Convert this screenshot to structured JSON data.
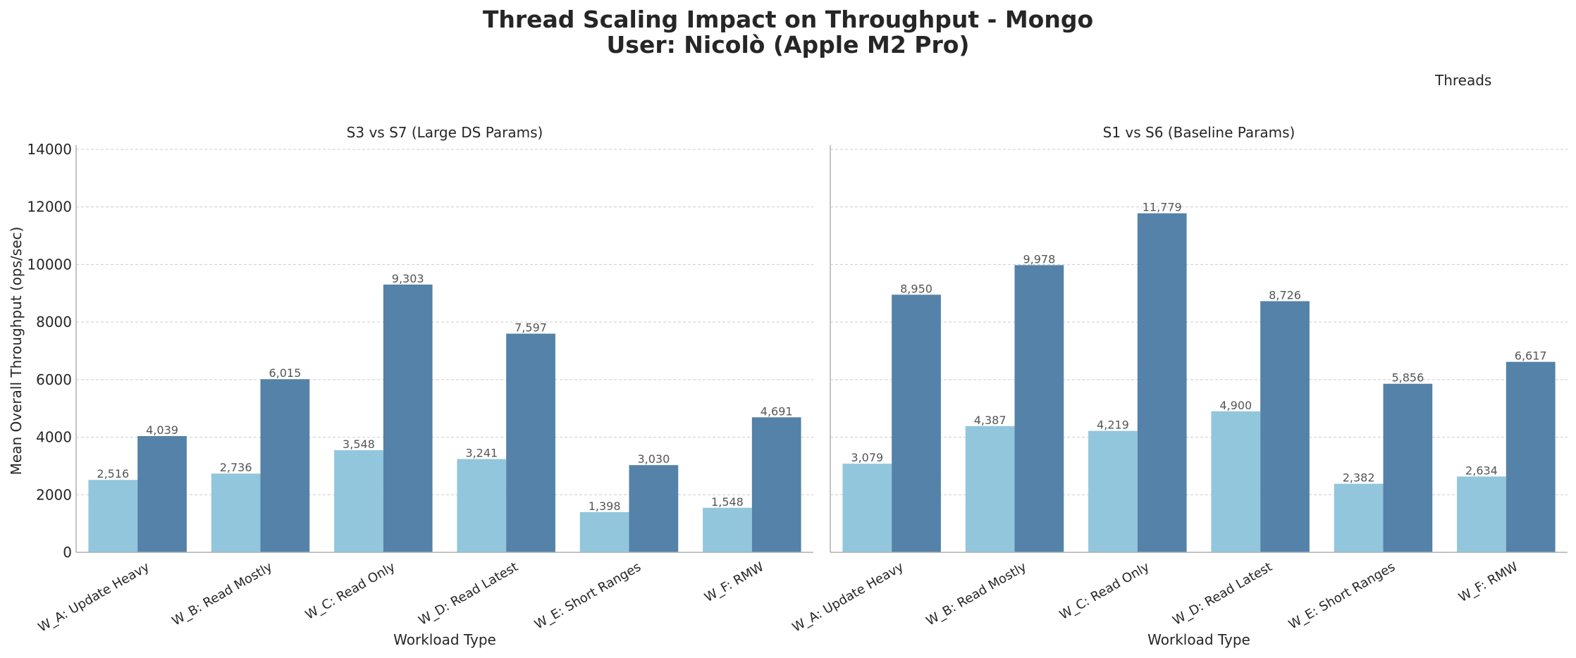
{
  "title_line1": "Thread Scaling Impact on Throughput - Mongo",
  "title_line2": "User: Nicolò (Apple M2 Pro)",
  "legend_title": "Threads",
  "colors": {
    "low_threads": "#92c6dd",
    "high_threads": "#5482a8",
    "grid": "#cccccc",
    "axis": "#b0b0b0"
  },
  "chart_data": [
    {
      "type": "bar",
      "subtitle": "S3 vs S7 (Large DS Params)",
      "xlabel": "Workload Type",
      "ylabel": "Mean Overall Throughput (ops/sec)",
      "ylim": [
        0,
        14000
      ],
      "yticks": [
        0,
        2000,
        4000,
        6000,
        8000,
        10000,
        12000,
        14000
      ],
      "grid": true,
      "categories": [
        "W_A: Update Heavy",
        "W_B: Read Mostly",
        "W_C: Read Only",
        "W_D: Read Latest",
        "W_E: Short Ranges",
        "W_F: RMW"
      ],
      "series": [
        {
          "values": [
            2516,
            2736,
            3548,
            3241,
            1398,
            1548
          ],
          "labels": [
            "2,516",
            "2,736",
            "3,548",
            "3,241",
            "1,398",
            "1,548"
          ]
        },
        {
          "values": [
            4039,
            6015,
            9303,
            7597,
            3030,
            4691
          ],
          "labels": [
            "4,039",
            "6,015",
            "9,303",
            "7,597",
            "3,030",
            "4,691"
          ]
        }
      ]
    },
    {
      "type": "bar",
      "subtitle": "S1 vs S6 (Baseline Params)",
      "xlabel": "Workload Type",
      "ylabel": "",
      "ylim": [
        0,
        14000
      ],
      "grid": true,
      "categories": [
        "W_A: Update Heavy",
        "W_B: Read Mostly",
        "W_C: Read Only",
        "W_D: Read Latest",
        "W_E: Short Ranges",
        "W_F: RMW"
      ],
      "series": [
        {
          "values": [
            3079,
            4387,
            4219,
            4900,
            2382,
            2634
          ],
          "labels": [
            "3,079",
            "4,387",
            "4,219",
            "4,900",
            "2,382",
            "2,634"
          ]
        },
        {
          "values": [
            8950,
            9978,
            11779,
            8726,
            5856,
            6617
          ],
          "labels": [
            "8,950",
            "9,978",
            "11,779",
            "8,726",
            "5,856",
            "6,617"
          ]
        }
      ]
    }
  ]
}
